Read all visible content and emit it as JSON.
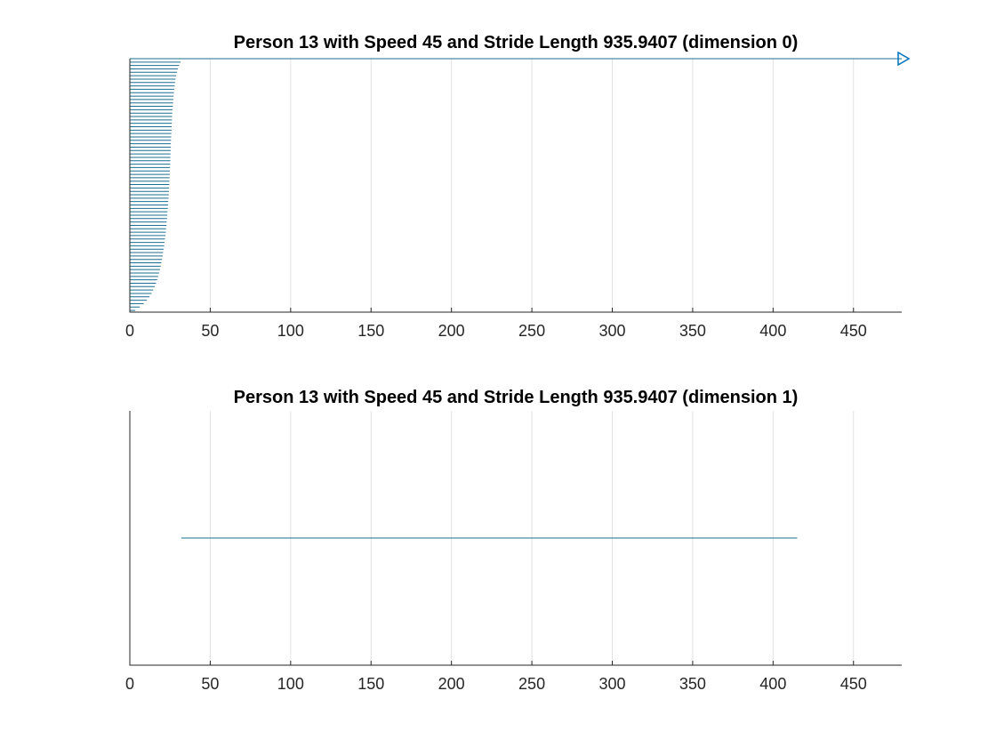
{
  "colors": {
    "series": "#1b6f8f",
    "marker": "#0072bd",
    "grid": "#e2e2e2",
    "axis": "#262626",
    "text": "#000000"
  },
  "chart_data": [
    {
      "type": "bar",
      "orientation": "horizontal",
      "title": "Person 13 with Speed 45 and Stride Length 935.9407 (dimension 0)",
      "xlabel": "",
      "ylabel": "",
      "xlim": [
        0,
        480
      ],
      "xticks": [
        "0",
        "50",
        "100",
        "150",
        "200",
        "250",
        "300",
        "350",
        "400",
        "450"
      ],
      "grid": "vertical",
      "y_axis_direction": "reversed",
      "marker": {
        "shape": "right-triangle",
        "x": 480,
        "y": 0
      },
      "values": [
        480,
        31.5,
        30.6,
        29.9,
        29.3,
        28.8,
        28.4,
        28.1,
        27.9,
        27.6,
        27.4,
        27.2,
        27.0,
        26.9,
        26.7,
        26.5,
        26.4,
        26.3,
        26.2,
        26.1,
        26.0,
        25.9,
        25.8,
        25.7,
        25.6,
        25.5,
        25.5,
        25.4,
        25.3,
        25.2,
        25.2,
        25.1,
        25.0,
        24.9,
        24.8,
        24.7,
        24.6,
        24.5,
        24.4,
        24.3,
        24.2,
        24.1,
        23.9,
        23.8,
        23.6,
        23.4,
        23.3,
        23.1,
        22.9,
        22.7,
        22.5,
        22.3,
        22.1,
        21.8,
        21.6,
        21.3,
        21.0,
        20.7,
        20.4,
        20.0,
        19.6,
        19.2,
        18.7,
        18.2,
        17.6,
        17.0,
        16.3,
        15.5,
        14.6,
        13.5,
        12.2,
        10.6,
        8.6,
        6.2,
        3.4
      ]
    },
    {
      "type": "line",
      "title": "Person 13 with Speed 45 and Stride Length 935.9407 (dimension 1)",
      "xlabel": "",
      "ylabel": "",
      "xlim": [
        0,
        480
      ],
      "xticks": [
        "0",
        "50",
        "100",
        "150",
        "200",
        "250",
        "300",
        "350",
        "400",
        "450"
      ],
      "grid": "vertical",
      "series": [
        {
          "x": [
            32,
            415
          ],
          "y": [
            0.5,
            0.5
          ]
        }
      ]
    }
  ]
}
